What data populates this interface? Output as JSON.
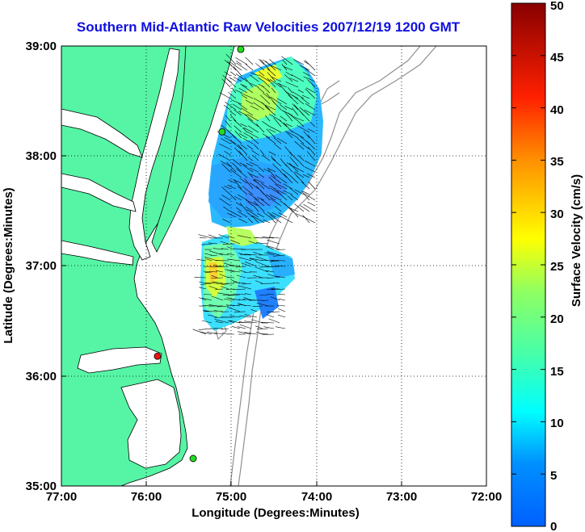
{
  "title": "Southern Mid-Atlantic Raw Velocities 2007/12/19 1200 GMT",
  "xlabel": "Longitude (Degrees:Minutes)",
  "ylabel": "Latitude (Degrees:Minutes)",
  "x_ticks": [
    "77:00",
    "76:00",
    "75:00",
    "74:00",
    "73:00",
    "72:00"
  ],
  "y_ticks": [
    "39:00",
    "38:00",
    "37:00",
    "36:00",
    "35:00"
  ],
  "colorbar": {
    "label": "Surface Velocity (cm/s)",
    "ticks": [
      "0",
      "5",
      "10",
      "15",
      "20",
      "25",
      "30",
      "35",
      "40",
      "45",
      "50"
    ],
    "min": 0,
    "max": 50
  },
  "extent": {
    "lon": [
      -77,
      -72
    ],
    "lat": [
      35,
      39
    ]
  },
  "colors": {
    "land": "#55f5a5",
    "title": "#1010e0",
    "station": "#22dd22",
    "station_highlight": "#ee1111",
    "bathymetry": "#909090"
  },
  "stations": [
    {
      "lon": -74.89,
      "lat": 38.97,
      "highlight": false
    },
    {
      "lon": -75.11,
      "lat": 38.22,
      "highlight": false
    },
    {
      "lon": -75.87,
      "lat": 36.18,
      "highlight": true
    },
    {
      "lon": -75.45,
      "lat": 35.25,
      "highlight": false
    }
  ]
}
